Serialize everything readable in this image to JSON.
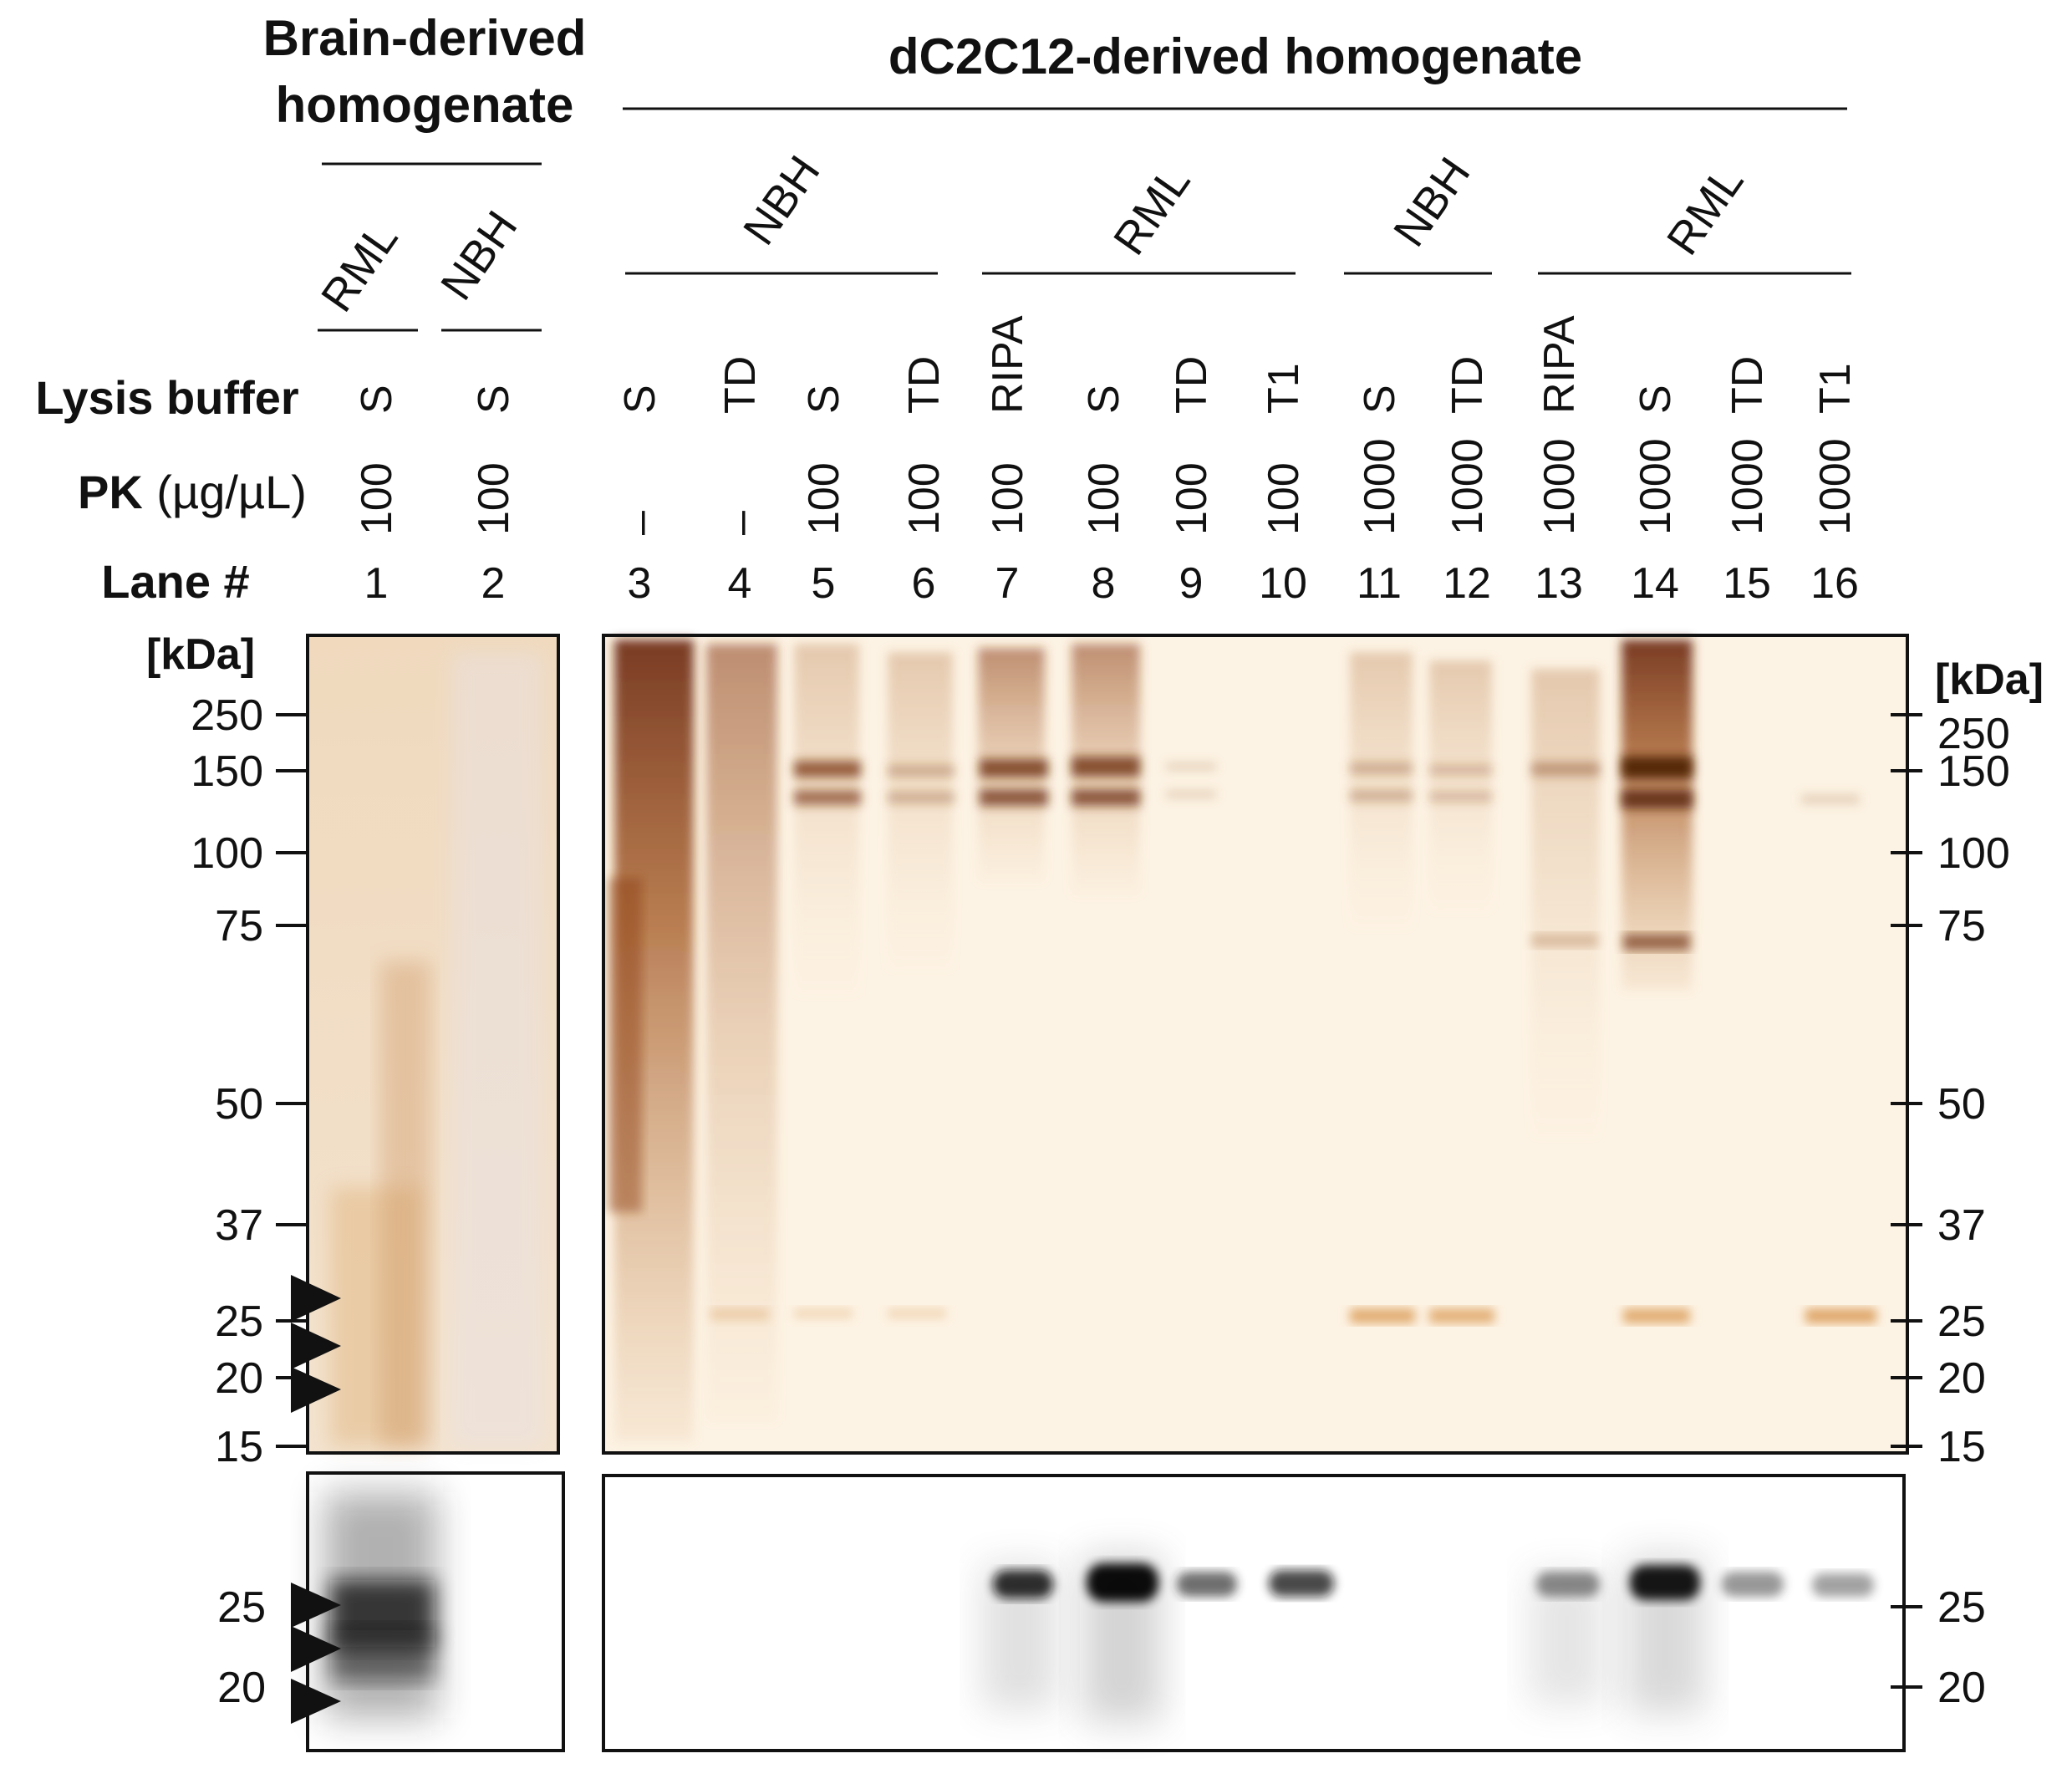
{
  "header": {
    "brain_title_line1": "Brain-derived",
    "brain_title_line2": "homogenate",
    "dc2c12_title": "dC2C12-derived homogenate"
  },
  "groups": {
    "brain": [
      "RML",
      "NBH"
    ],
    "dc2c12": [
      "NBH",
      "RML",
      "NBH",
      "RML"
    ]
  },
  "row_labels": {
    "lysis": "Lysis buffer",
    "pk_bold": "PK",
    "pk_unit": "(µg/µL)",
    "lane": "Lane #"
  },
  "lanes": [
    {
      "n": "1",
      "buffer": "S",
      "pk": "100"
    },
    {
      "n": "2",
      "buffer": "S",
      "pk": "100"
    },
    {
      "n": "3",
      "buffer": "S",
      "pk": "–"
    },
    {
      "n": "4",
      "buffer": "TD",
      "pk": "–"
    },
    {
      "n": "5",
      "buffer": "S",
      "pk": "100"
    },
    {
      "n": "6",
      "buffer": "TD",
      "pk": "100"
    },
    {
      "n": "7",
      "buffer": "RIPA",
      "pk": "100"
    },
    {
      "n": "8",
      "buffer": "S",
      "pk": "100"
    },
    {
      "n": "9",
      "buffer": "TD",
      "pk": "100"
    },
    {
      "n": "10",
      "buffer": "T1",
      "pk": "100"
    },
    {
      "n": "11",
      "buffer": "S",
      "pk": "1000"
    },
    {
      "n": "12",
      "buffer": "TD",
      "pk": "1000"
    },
    {
      "n": "13",
      "buffer": "RIPA",
      "pk": "1000"
    },
    {
      "n": "14",
      "buffer": "S",
      "pk": "1000"
    },
    {
      "n": "15",
      "buffer": "TD",
      "pk": "1000"
    },
    {
      "n": "16",
      "buffer": "T1",
      "pk": "1000"
    }
  ],
  "markers": {
    "unit": "[kDa]",
    "silver_left": [
      "250",
      "150",
      "100",
      "75",
      "50",
      "37",
      "25",
      "20",
      "15"
    ],
    "silver_right": [
      "250",
      "150",
      "100",
      "75",
      "50",
      "37",
      "25",
      "20",
      "15"
    ],
    "western_left": [
      "25",
      "20"
    ],
    "western_right": [
      "25",
      "20"
    ]
  },
  "colors": {
    "silver_stain": "#8a3a10",
    "gel_background": "#fcefdc",
    "western_band": "#111111"
  }
}
